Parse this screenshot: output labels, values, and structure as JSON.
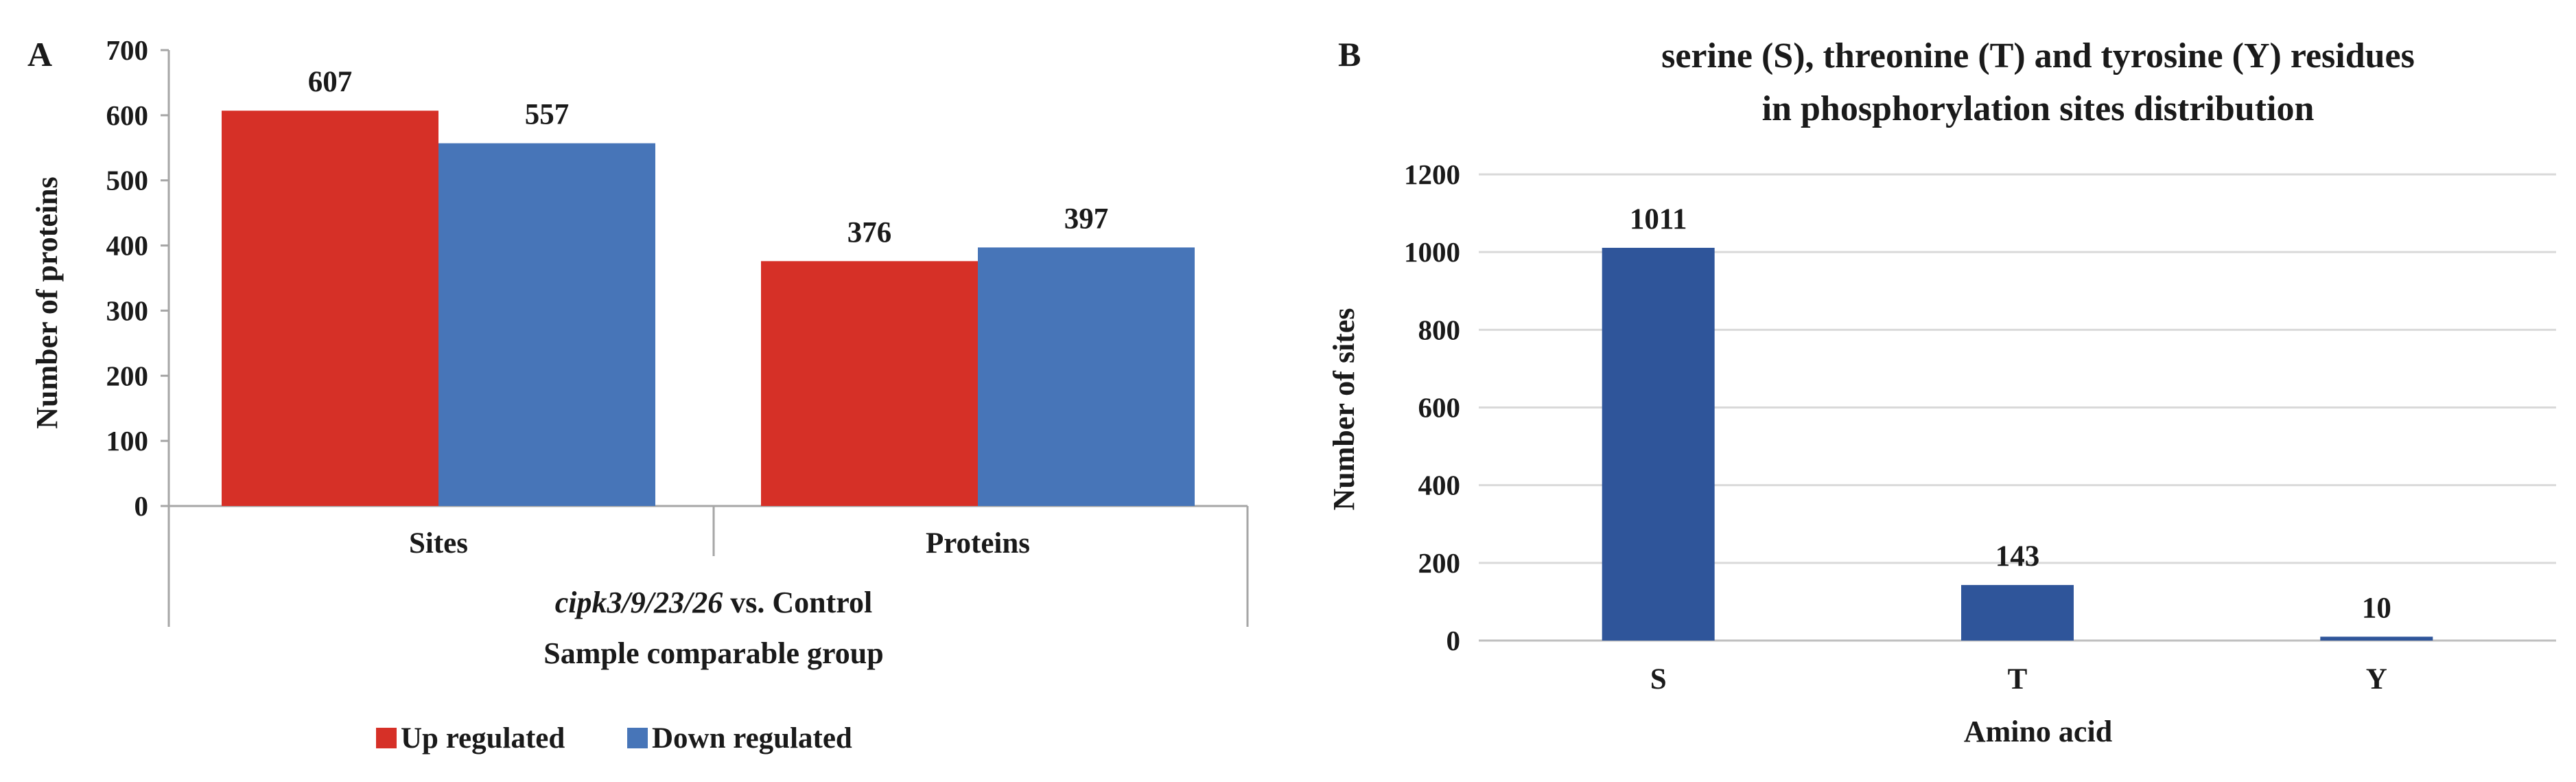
{
  "chart_data": [
    {
      "panel_label": "A",
      "type": "bar",
      "categories": [
        "Sites",
        "Proteins"
      ],
      "series": [
        {
          "name": "Up regulated",
          "values": [
            607,
            376
          ]
        },
        {
          "name": "Down regulated",
          "values": [
            557,
            397
          ]
        }
      ],
      "xlabel_italic": "cipk3/9/23/26",
      "xlabel_rest": " vs. Control",
      "xlabel": "Sample comparable group",
      "ylabel": "Number of proteins",
      "ylim": [
        0,
        700
      ],
      "yticks": [
        0,
        100,
        200,
        300,
        400,
        500,
        600,
        700
      ],
      "grid": false,
      "legend": "bottom",
      "colors": [
        "#d63027",
        "#4775b8"
      ]
    },
    {
      "panel_label": "B",
      "type": "bar",
      "title_line1": "serine (S), threonine (T) and tyrosine (Y) residues",
      "title_line2": "in phosphorylation sites distribution",
      "categories": [
        "S",
        "T",
        "Y"
      ],
      "values": [
        1011,
        143,
        10
      ],
      "xlabel": "Amino acid",
      "ylabel": "Number of sites",
      "ylim": [
        0,
        1200
      ],
      "yticks": [
        0,
        200,
        400,
        600,
        800,
        1000,
        1200
      ],
      "grid": true,
      "colors": [
        "#2f559a"
      ]
    }
  ]
}
